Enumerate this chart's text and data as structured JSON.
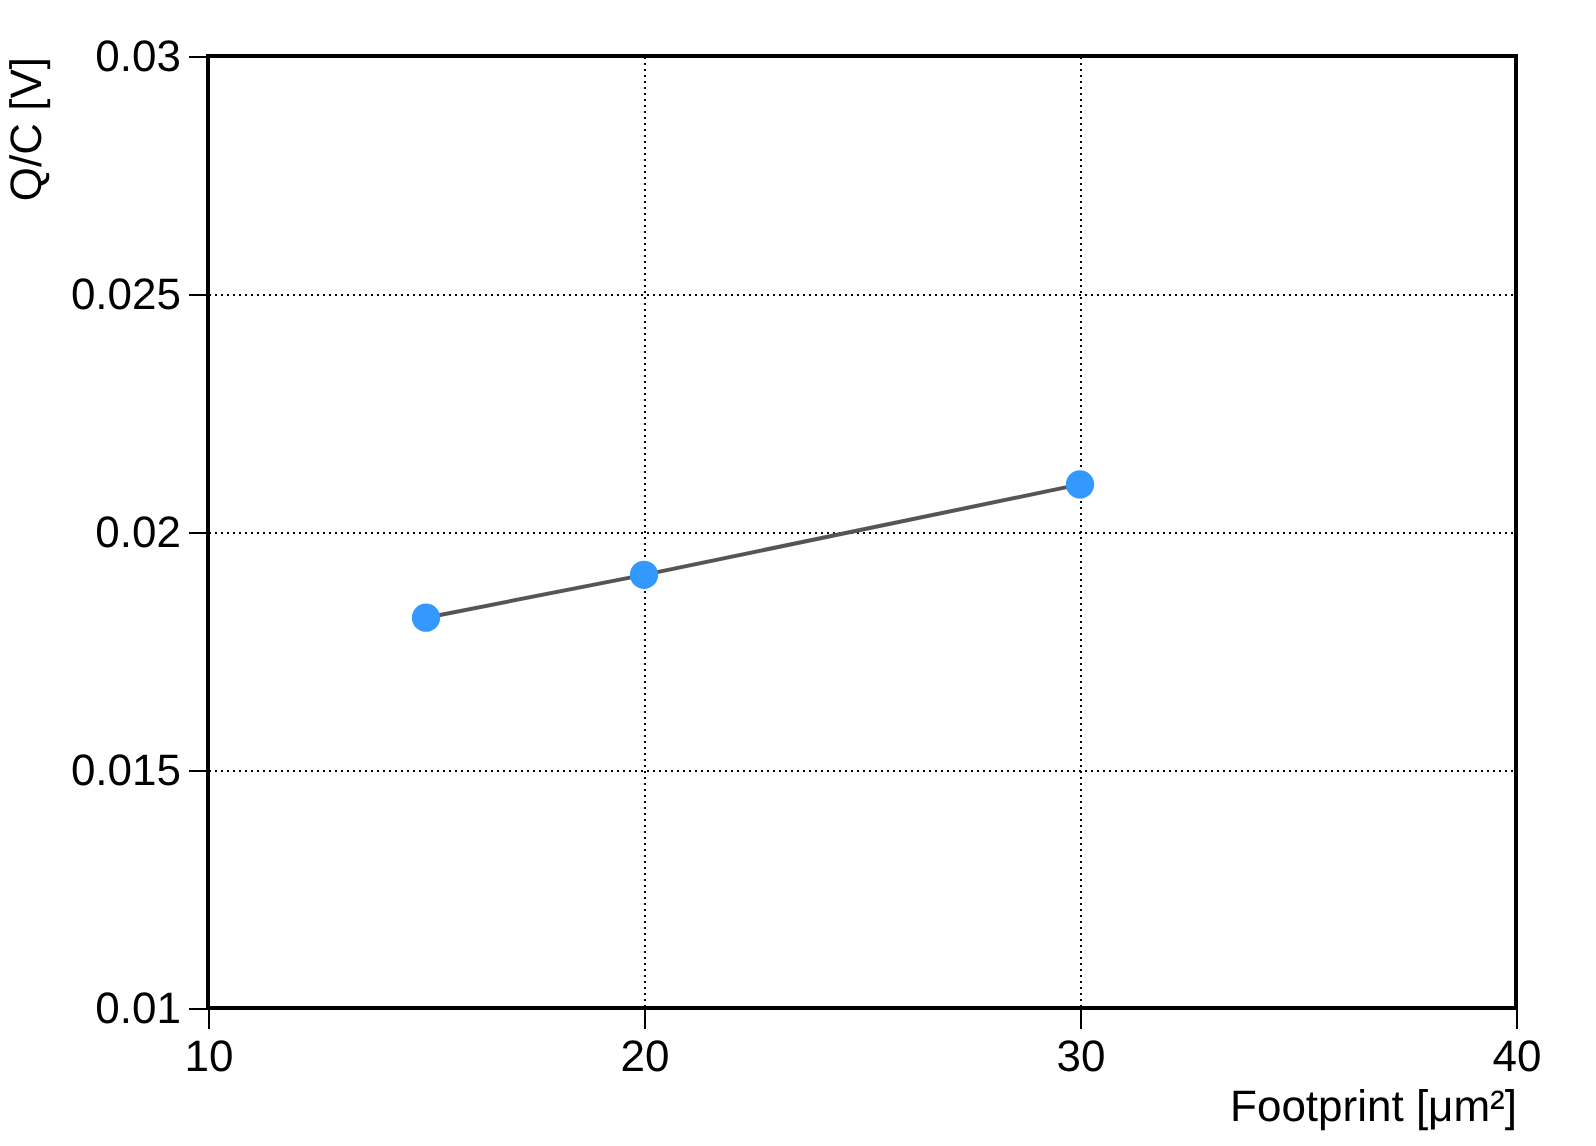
{
  "chart_data": {
    "type": "line",
    "xlabel": "Footprint [μm²]",
    "ylabel": "Q/C [V]",
    "x": [
      15,
      20,
      30
    ],
    "series": [
      {
        "color": "#555555",
        "marker": "none",
        "values": [
          0.0182,
          0.0191,
          0.021
        ]
      },
      {
        "type": "scatter",
        "color": "#3399ff",
        "marker": "circle",
        "values": [
          0.0182,
          0.0191,
          0.021
        ]
      }
    ],
    "xlim": [
      10,
      40
    ],
    "xticks": [
      10,
      20,
      30,
      40
    ],
    "ylim": [
      0.01,
      0.03
    ],
    "yticks": [
      0.01,
      0.015,
      0.02,
      0.025,
      0.03
    ],
    "grid": true
  }
}
